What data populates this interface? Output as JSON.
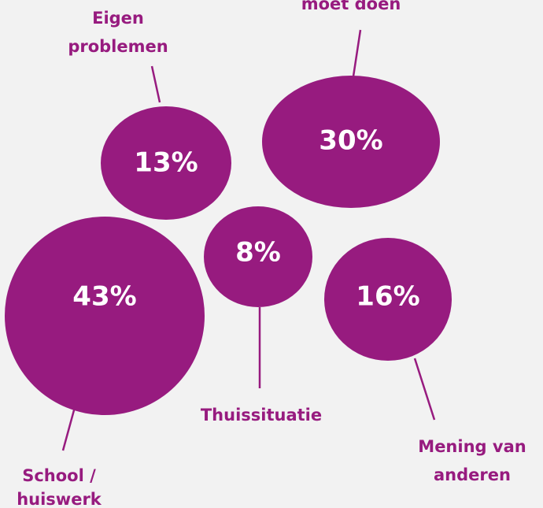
{
  "chart_data": {
    "type": "bubble",
    "categories": [
      [
        "Eigen",
        "problemen"
      ],
      [
        "moet doen"
      ],
      [
        "School /",
        "huiswerk"
      ],
      [
        "Thuissituatie"
      ],
      [
        "Mening van",
        "anderen"
      ]
    ],
    "values": [
      13,
      30,
      43,
      8,
      16
    ],
    "value_labels": [
      "13%",
      "30%",
      "43%",
      "8%",
      "16%"
    ],
    "color": "#971b7f"
  }
}
